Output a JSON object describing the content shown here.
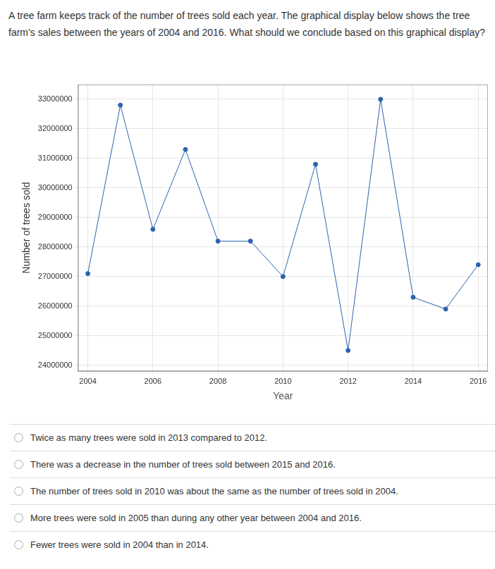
{
  "question": "A tree farm keeps track of the number of trees sold each year. The graphical display below shows the tree farm’s sales between the years of 2004 and 2016. What should we conclude based on this graphical display?",
  "chart_data": {
    "type": "line",
    "x_label": "Year",
    "y_label": "Number of trees sold",
    "x": [
      2004,
      2005,
      2006,
      2007,
      2008,
      2009,
      2010,
      2011,
      2012,
      2013,
      2014,
      2015,
      2016
    ],
    "values": [
      27100000,
      32800000,
      28600000,
      31300000,
      28200000,
      28200000,
      27000000,
      30800000,
      24500000,
      33000000,
      26300000,
      25900000,
      27400000
    ],
    "color": "#2b63ad",
    "marker": "circle",
    "xlim": [
      2003.7,
      2016.3
    ],
    "xticks": [
      2004,
      2006,
      2008,
      2010,
      2012,
      2014,
      2016
    ],
    "ylim": [
      23800000,
      33500000
    ],
    "yticks": [
      24000000,
      25000000,
      26000000,
      27000000,
      28000000,
      29000000,
      30000000,
      31000000,
      32000000,
      33000000
    ],
    "grid": true
  },
  "options": [
    "Twice as many trees were sold in 2013 compared to 2012.",
    "There was a decrease in the number of trees sold between 2015 and 2016.",
    "The number of trees sold in 2010 was about the same as the number of trees sold in 2004.",
    "More trees were sold in 2005 than during any other year between 2004 and 2016.",
    "Fewer trees were sold in 2004 than in 2014."
  ]
}
